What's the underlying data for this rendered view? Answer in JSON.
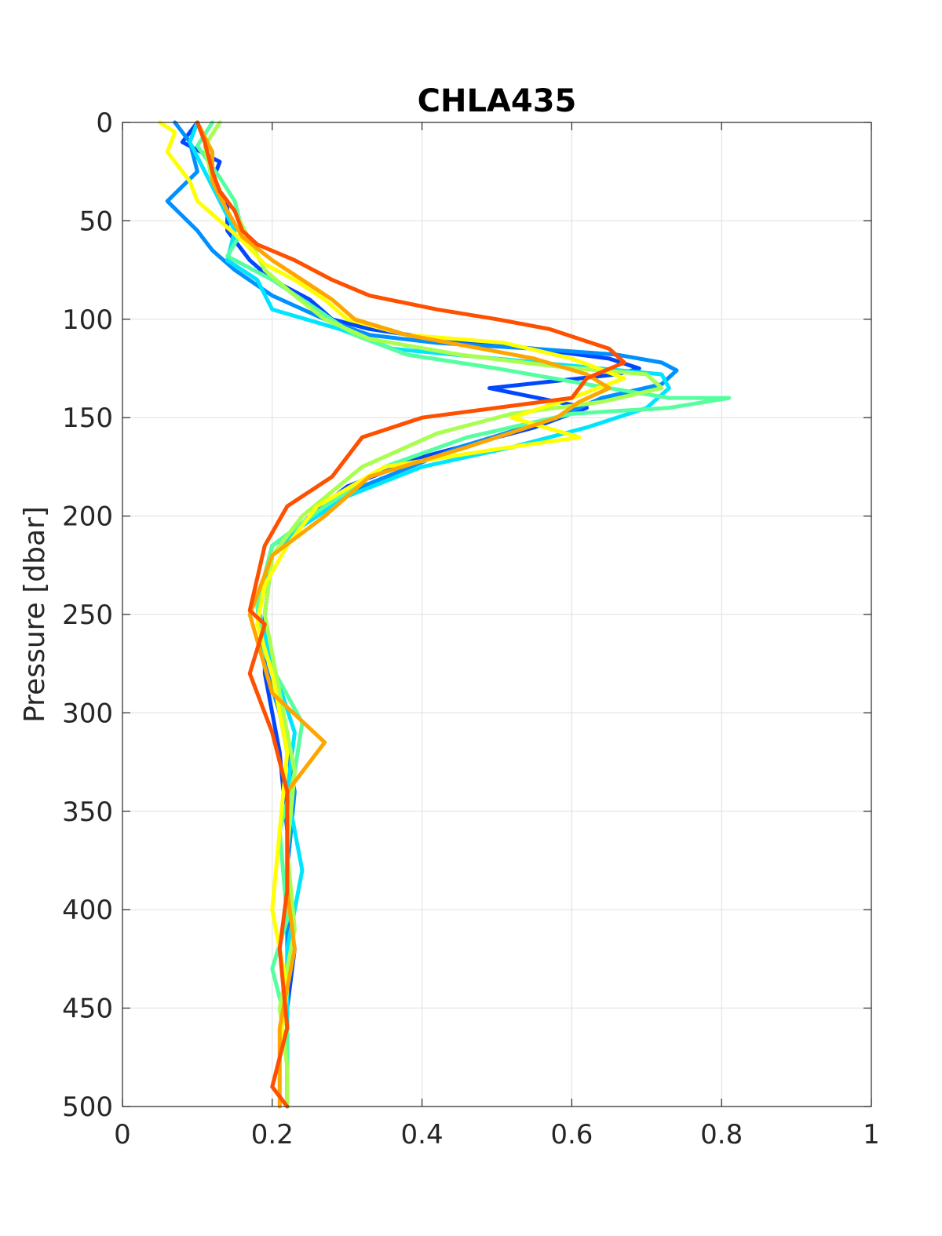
{
  "chart_data": {
    "type": "line",
    "title": "CHLA435",
    "xlabel": "",
    "ylabel": "Pressure [dbar]",
    "xlim": [
      0,
      1
    ],
    "ylim": [
      0,
      500
    ],
    "y_reversed": true,
    "grid": true,
    "x_ticks": [
      "0",
      "0.2",
      "0.4",
      "0.6",
      "0.8",
      "1"
    ],
    "y_ticks": [
      "0",
      "50",
      "100",
      "150",
      "200",
      "250",
      "300",
      "350",
      "400",
      "450",
      "500"
    ],
    "series": [
      {
        "color": "#0047ff",
        "x": [
          0.1,
          0.08,
          0.13,
          0.12,
          0.14,
          0.14,
          0.17,
          0.2,
          0.25,
          0.28,
          0.33,
          0.42,
          0.55,
          0.65,
          0.69,
          0.66,
          0.49,
          0.62,
          0.55,
          0.4,
          0.3,
          0.25,
          0.2,
          0.19,
          0.19,
          0.21,
          0.22,
          0.22,
          0.23,
          0.22,
          0.22,
          0.22
        ],
        "y": [
          0,
          10,
          20,
          30,
          40,
          55,
          70,
          80,
          90,
          100,
          105,
          110,
          115,
          120,
          125,
          128,
          135,
          145,
          155,
          170,
          185,
          200,
          220,
          250,
          280,
          320,
          360,
          400,
          420,
          450,
          480,
          500
        ]
      },
      {
        "color": "#0090ff",
        "x": [
          0.07,
          0.09,
          0.1,
          0.06,
          0.1,
          0.12,
          0.15,
          0.2,
          0.27,
          0.33,
          0.42,
          0.55,
          0.66,
          0.72,
          0.74,
          0.72,
          0.64,
          0.58,
          0.45,
          0.32,
          0.26,
          0.2,
          0.18,
          0.19,
          0.21,
          0.23,
          0.22,
          0.22,
          0.22,
          0.22
        ],
        "y": [
          0,
          10,
          25,
          40,
          55,
          65,
          75,
          88,
          100,
          108,
          112,
          115,
          118,
          122,
          126,
          133,
          140,
          150,
          165,
          185,
          200,
          215,
          245,
          275,
          300,
          340,
          380,
          420,
          460,
          500
        ]
      },
      {
        "color": "#00e5ff",
        "x": [
          0.1,
          0.09,
          0.11,
          0.13,
          0.15,
          0.14,
          0.18,
          0.2,
          0.29,
          0.36,
          0.5,
          0.72,
          0.73,
          0.7,
          0.62,
          0.52,
          0.4,
          0.3,
          0.24,
          0.2,
          0.18,
          0.2,
          0.23,
          0.22,
          0.24,
          0.22,
          0.22,
          0.22
        ],
        "y": [
          0,
          10,
          25,
          40,
          55,
          70,
          80,
          95,
          105,
          115,
          120,
          128,
          135,
          145,
          155,
          165,
          175,
          190,
          205,
          220,
          245,
          275,
          310,
          340,
          380,
          420,
          460,
          500
        ]
      },
      {
        "color": "#55ff9f",
        "x": [
          0.12,
          0.1,
          0.13,
          0.15,
          0.16,
          0.14,
          0.2,
          0.26,
          0.31,
          0.38,
          0.5,
          0.65,
          0.73,
          0.81,
          0.73,
          0.6,
          0.46,
          0.35,
          0.27,
          0.2,
          0.18,
          0.19,
          0.24,
          0.23,
          0.21,
          0.22,
          0.2,
          0.22,
          0.22
        ],
        "y": [
          0,
          12,
          28,
          40,
          55,
          68,
          80,
          95,
          108,
          118,
          125,
          135,
          140,
          140,
          145,
          148,
          160,
          175,
          195,
          215,
          245,
          270,
          305,
          330,
          360,
          405,
          430,
          460,
          500
        ]
      },
      {
        "color": "#a8ff50",
        "x": [
          0.13,
          0.11,
          0.12,
          0.15,
          0.17,
          0.19,
          0.23,
          0.27,
          0.33,
          0.45,
          0.58,
          0.7,
          0.72,
          0.64,
          0.52,
          0.42,
          0.32,
          0.24,
          0.2,
          0.19,
          0.21,
          0.23,
          0.22,
          0.23,
          0.21,
          0.22,
          0.22
        ],
        "y": [
          0,
          12,
          30,
          45,
          60,
          75,
          88,
          100,
          110,
          118,
          124,
          128,
          135,
          142,
          148,
          158,
          175,
          200,
          220,
          250,
          290,
          330,
          370,
          410,
          450,
          480,
          500
        ]
      },
      {
        "color": "#ffff00",
        "x": [
          0.05,
          0.07,
          0.06,
          0.09,
          0.1,
          0.13,
          0.16,
          0.19,
          0.23,
          0.27,
          0.3,
          0.38,
          0.51,
          0.6,
          0.67,
          0.6,
          0.52,
          0.61,
          0.5,
          0.35,
          0.26,
          0.22,
          0.19,
          0.18,
          0.2,
          0.22,
          0.21,
          0.2,
          0.22,
          0.21,
          0.21
        ],
        "y": [
          0,
          5,
          15,
          30,
          40,
          50,
          60,
          72,
          80,
          90,
          100,
          108,
          112,
          120,
          130,
          140,
          150,
          160,
          166,
          175,
          195,
          215,
          235,
          255,
          280,
          320,
          360,
          400,
          440,
          470,
          500
        ]
      },
      {
        "color": "#ffa500",
        "x": [
          0.1,
          0.12,
          0.12,
          0.14,
          0.16,
          0.2,
          0.24,
          0.28,
          0.31,
          0.38,
          0.48,
          0.55,
          0.62,
          0.65,
          0.61,
          0.58,
          0.46,
          0.33,
          0.27,
          0.2,
          0.17,
          0.2,
          0.27,
          0.22,
          0.22,
          0.22,
          0.23,
          0.21,
          0.21,
          0.21
        ],
        "y": [
          0,
          15,
          30,
          45,
          58,
          70,
          80,
          90,
          100,
          108,
          115,
          120,
          128,
          135,
          142,
          150,
          165,
          180,
          200,
          220,
          250,
          290,
          315,
          340,
          360,
          390,
          420,
          460,
          480,
          500
        ]
      },
      {
        "color": "#ff5000",
        "x": [
          0.1,
          0.11,
          0.12,
          0.13,
          0.15,
          0.16,
          0.18,
          0.23,
          0.28,
          0.33,
          0.42,
          0.5,
          0.57,
          0.65,
          0.67,
          0.62,
          0.6,
          0.4,
          0.32,
          0.28,
          0.22,
          0.19,
          0.17,
          0.19,
          0.17,
          0.2,
          0.22,
          0.22,
          0.22,
          0.21,
          0.22,
          0.2,
          0.22
        ],
        "y": [
          0,
          10,
          25,
          35,
          45,
          55,
          62,
          70,
          80,
          88,
          95,
          100,
          105,
          115,
          122,
          130,
          140,
          150,
          160,
          180,
          195,
          215,
          248,
          255,
          280,
          310,
          340,
          360,
          390,
          420,
          460,
          490,
          500
        ]
      }
    ]
  }
}
